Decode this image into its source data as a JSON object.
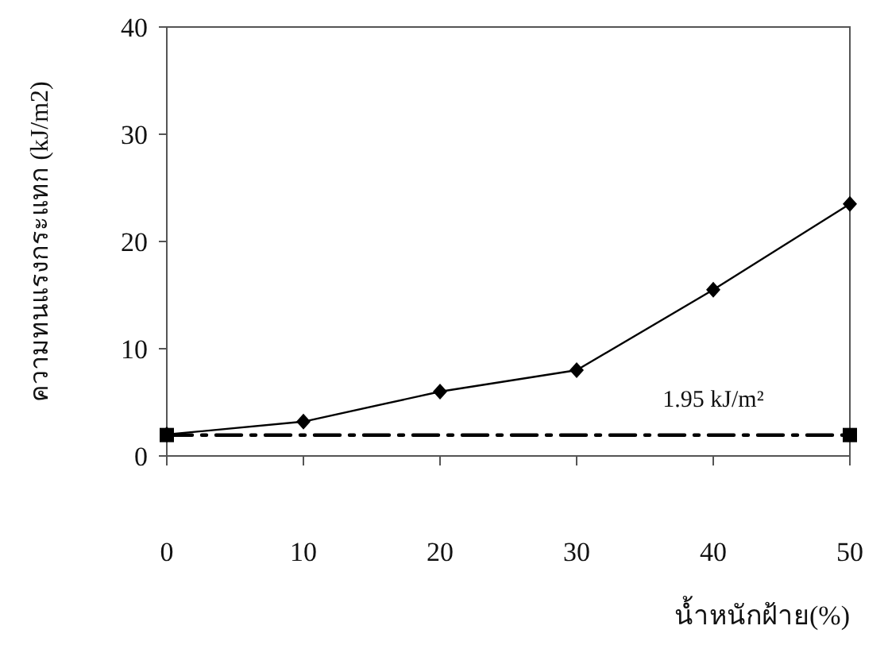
{
  "chart_data": {
    "type": "line",
    "xlabel": "น้ำหนักฝ้าย(%)",
    "ylabel": "ความทนแรงกระแทก (kJ/m2)",
    "x": [
      0,
      10,
      20,
      30,
      40,
      50
    ],
    "series": [
      {
        "color": "#000000",
        "values": [
          2,
          3.2,
          6,
          8,
          15.5,
          23.5
        ],
        "marker": "diamond",
        "line_style": "solid"
      },
      {
        "type": "line",
        "color": "#000000",
        "x": [
          0,
          50
        ],
        "values": [
          1.95,
          1.95
        ],
        "marker": "square",
        "line_style": "dashed"
      }
    ],
    "annotations": [
      {
        "text": "1.95 kJ/m²",
        "x": 40,
        "y": 1.95
      }
    ],
    "xlim": [
      0,
      50
    ],
    "xticks": [
      0,
      10,
      20,
      30,
      40,
      50
    ],
    "ylim": [
      0,
      40
    ],
    "yticks": [
      0,
      10,
      20,
      30,
      40
    ],
    "grid": false
  }
}
